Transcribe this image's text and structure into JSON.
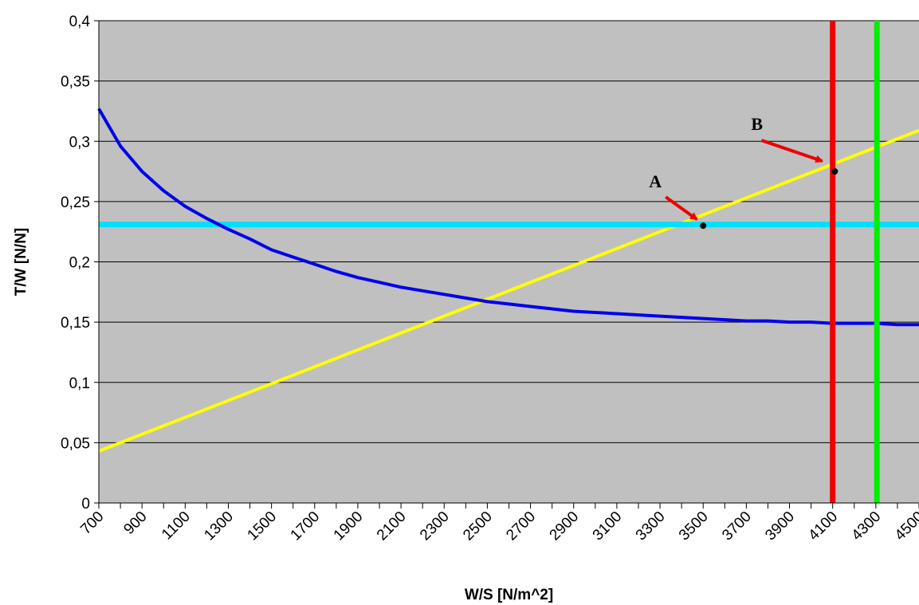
{
  "chart_data": {
    "type": "line",
    "xlabel": "W/S [N/m^2]",
    "ylabel": "T/W [N/N]",
    "xlim": [
      700,
      4500
    ],
    "ylim": [
      0,
      0.4
    ],
    "grid": "horizontal",
    "plot_background": "#c0c0c0",
    "x_ticks": [
      700,
      800,
      900,
      1000,
      1100,
      1200,
      1300,
      1400,
      1500,
      1600,
      1700,
      1800,
      1900,
      2000,
      2100,
      2200,
      2300,
      2400,
      2500,
      2600,
      2700,
      2800,
      2900,
      3000,
      3100,
      3200,
      3300,
      3400,
      3500,
      3600,
      3700,
      3800,
      3900,
      4000,
      4100,
      4200,
      4300,
      4400,
      4500
    ],
    "x_tick_labels": [
      "700",
      "900",
      "1100",
      "1300",
      "1500",
      "1700",
      "1900",
      "2100",
      "2300",
      "2500",
      "2700",
      "2900",
      "3100",
      "3300",
      "3500",
      "3700",
      "3900",
      "4100",
      "4300",
      "4500"
    ],
    "y_ticks": [
      0,
      0.05,
      0.1,
      0.15,
      0.2,
      0.25,
      0.3,
      0.35,
      0.4
    ],
    "y_tick_labels": [
      "0",
      "0,05",
      "0,1",
      "0,15",
      "0,2",
      "0,25",
      "0,3",
      "0,35",
      "0,4"
    ],
    "series": [
      {
        "color": "#0000ee",
        "kind": "curve",
        "x": [
          700,
          800,
          900,
          1000,
          1100,
          1200,
          1300,
          1400,
          1500,
          1600,
          1700,
          1800,
          1900,
          2000,
          2100,
          2200,
          2300,
          2400,
          2500,
          2600,
          2700,
          2800,
          2900,
          3000,
          3100,
          3200,
          3300,
          3400,
          3500,
          3600,
          3700,
          3800,
          3900,
          4000,
          4100,
          4200,
          4300,
          4400,
          4500
        ],
        "y": [
          0.327,
          0.296,
          0.275,
          0.259,
          0.246,
          0.236,
          0.227,
          0.219,
          0.21,
          0.204,
          0.198,
          0.192,
          0.187,
          0.183,
          0.179,
          0.176,
          0.173,
          0.17,
          0.167,
          0.165,
          0.163,
          0.161,
          0.159,
          0.158,
          0.157,
          0.156,
          0.155,
          0.154,
          0.153,
          0.152,
          0.151,
          0.151,
          0.15,
          0.15,
          0.149,
          0.149,
          0.149,
          0.148,
          0.148
        ]
      },
      {
        "color": "#ffff00",
        "kind": "line",
        "x": [
          700,
          4500
        ],
        "y": [
          0.043,
          0.309
        ]
      },
      {
        "color": "#00e0ff",
        "kind": "hline",
        "x": [
          700,
          4500
        ],
        "y": [
          0.231,
          0.231
        ]
      },
      {
        "color": "#ee0000",
        "kind": "vline",
        "x": [
          4100,
          4100
        ],
        "y": [
          0,
          0.4
        ]
      },
      {
        "color": "#00ee00",
        "kind": "vline",
        "x": [
          4305,
          4305
        ],
        "y": [
          0,
          0.4
        ]
      }
    ],
    "annotations": [
      {
        "text": "A",
        "point": [
          3500,
          0.23
        ],
        "arrow_color": "#ee0000"
      },
      {
        "text": "B",
        "point": [
          4110,
          0.275
        ],
        "arrow_color": "#ee0000"
      }
    ]
  }
}
